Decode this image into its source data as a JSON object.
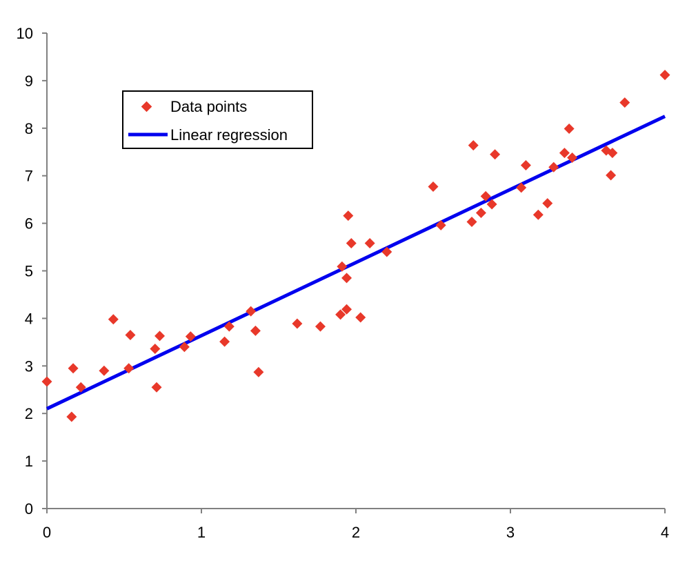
{
  "chart_data": {
    "type": "scatter",
    "title": "",
    "xlabel": "",
    "ylabel": "",
    "xlim": [
      0,
      4
    ],
    "ylim": [
      0,
      10
    ],
    "x_ticks": [
      "0",
      "1",
      "2",
      "3",
      "4"
    ],
    "y_ticks": [
      "0",
      "1",
      "2",
      "3",
      "4",
      "5",
      "6",
      "7",
      "8",
      "9",
      "10"
    ],
    "grid": false,
    "legend_position": "top-left",
    "legend": {
      "points_label": "Data points",
      "line_label": "Linear regression"
    },
    "colors": {
      "points": "#e8382a",
      "line": "#0000ee",
      "axis": "#808080"
    },
    "series": [
      {
        "name": "Data points",
        "kind": "scatter",
        "x": [
          0.0,
          0.16,
          0.17,
          0.22,
          0.37,
          0.43,
          0.53,
          0.54,
          0.7,
          0.71,
          0.73,
          0.89,
          0.93,
          1.15,
          1.18,
          1.32,
          1.35,
          1.37,
          1.62,
          1.77,
          1.9,
          1.91,
          1.94,
          1.94,
          1.95,
          1.97,
          2.03,
          2.09,
          2.2,
          2.5,
          2.55,
          2.75,
          2.76,
          2.81,
          2.84,
          2.88,
          2.9,
          3.07,
          3.1,
          3.18,
          3.24,
          3.28,
          3.35,
          3.38,
          3.4,
          3.62,
          3.65,
          3.66,
          3.74,
          4.0
        ],
        "y": [
          2.67,
          1.93,
          2.95,
          2.55,
          2.9,
          3.98,
          2.95,
          3.65,
          3.36,
          2.55,
          3.63,
          3.4,
          3.62,
          3.51,
          3.83,
          4.15,
          3.74,
          2.87,
          3.89,
          3.83,
          4.08,
          5.09,
          4.85,
          4.19,
          6.16,
          5.58,
          4.02,
          5.58,
          5.4,
          6.77,
          5.96,
          6.03,
          7.64,
          6.22,
          6.57,
          6.4,
          7.45,
          6.75,
          7.22,
          6.18,
          6.42,
          7.18,
          7.48,
          7.99,
          7.38,
          7.53,
          7.01,
          7.48,
          8.54,
          9.12
        ]
      },
      {
        "name": "Linear regression",
        "kind": "line",
        "x": [
          0,
          4
        ],
        "y": [
          2.1,
          8.25
        ]
      }
    ]
  }
}
